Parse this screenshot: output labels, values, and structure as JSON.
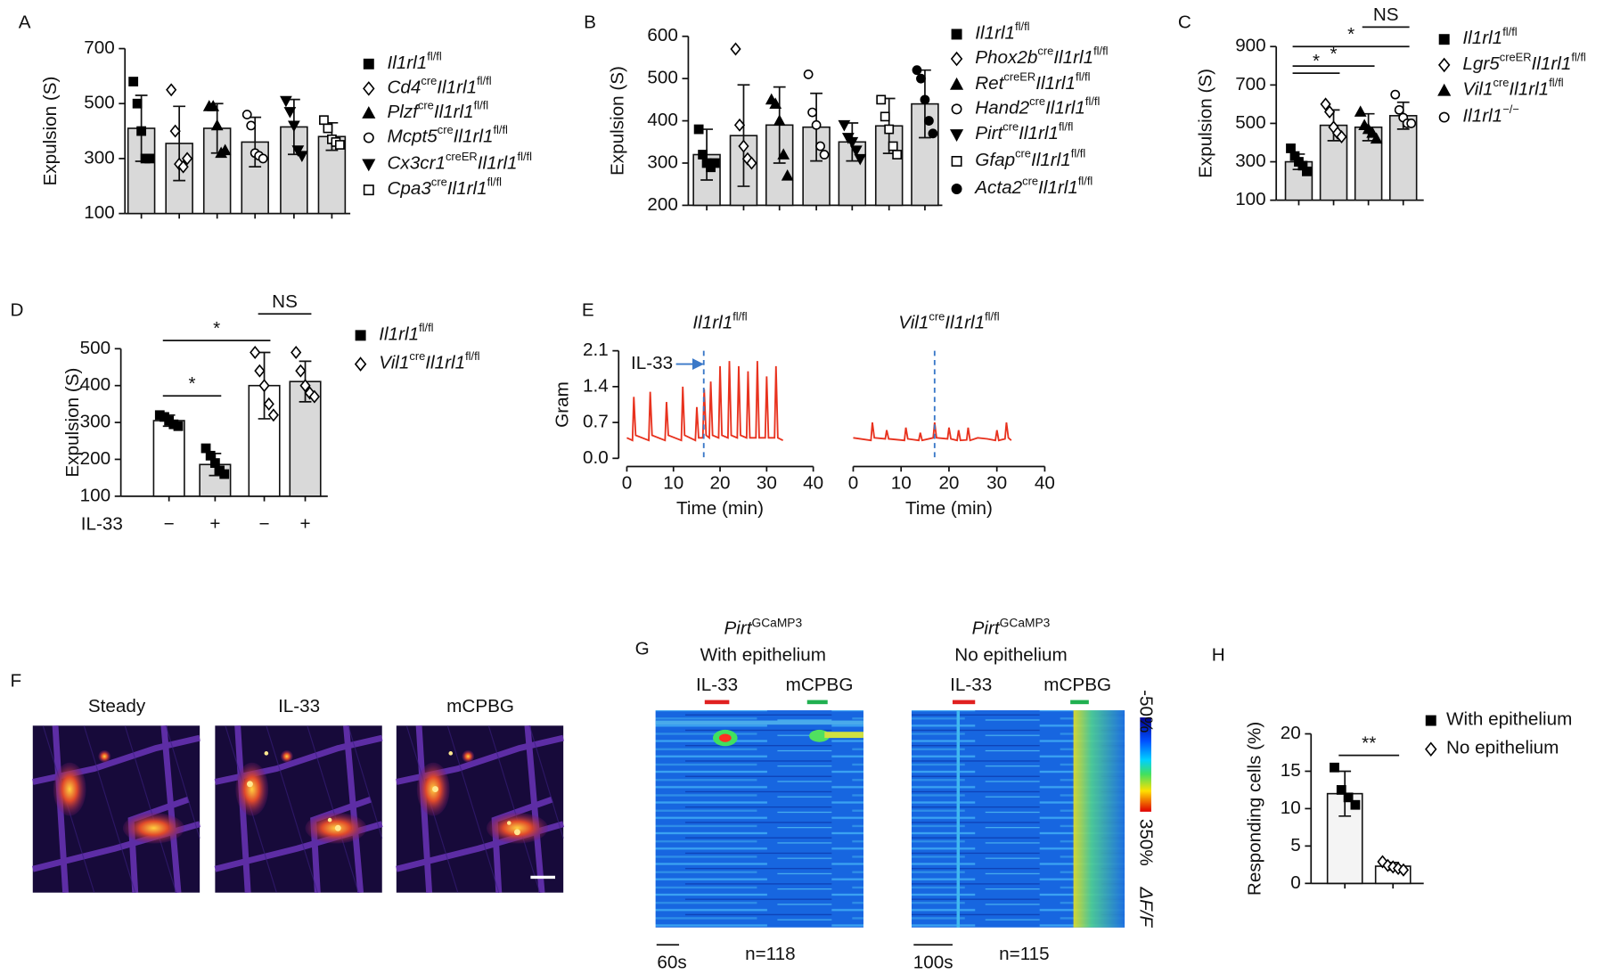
{
  "chart_data": [
    {
      "panel": "A",
      "type": "bar",
      "ylabel": "Expulsion (S)",
      "ylim": [
        100,
        700
      ],
      "yticks": [
        100,
        300,
        500,
        700
      ],
      "bars": [
        {
          "value": 410,
          "error": 120,
          "points": [
            580,
            500,
            400,
            300,
            300
          ],
          "marker": "filled-square",
          "color": "#d9d9d9"
        },
        {
          "value": 355,
          "error": 135,
          "points": [
            550,
            400,
            280,
            270,
            300
          ],
          "marker": "open-diamond",
          "color": "#d9d9d9"
        },
        {
          "value": 410,
          "error": 90,
          "points": [
            490,
            490,
            420,
            320,
            330
          ],
          "marker": "filled-triangle",
          "color": "#d9d9d9"
        },
        {
          "value": 360,
          "error": 90,
          "points": [
            460,
            420,
            320,
            310,
            300
          ],
          "marker": "open-circle",
          "color": "#d9d9d9"
        },
        {
          "value": 415,
          "error": 100,
          "points": [
            510,
            470,
            420,
            330,
            310
          ],
          "marker": "filled-triangle-down",
          "color": "#d9d9d9"
        },
        {
          "value": 380,
          "error": 50,
          "points": [
            440,
            410,
            370,
            360,
            350
          ],
          "marker": "open-square",
          "color": "#d9d9d9"
        }
      ],
      "legend": [
        {
          "name": [
            "Il1rl1",
            "fl/fl"
          ],
          "marker": "filled-square"
        },
        {
          "name": [
            "Cd4",
            "cre",
            "Il1rl1",
            "fl/fl"
          ],
          "marker": "open-diamond"
        },
        {
          "name": [
            "Plzf",
            "cre",
            "Il1rl1",
            "fl/fl"
          ],
          "marker": "filled-triangle"
        },
        {
          "name": [
            "Mcpt5",
            "cre",
            "Il1rl1",
            "fl/fl"
          ],
          "marker": "open-circle"
        },
        {
          "name": [
            "Cx3cr1",
            "creER",
            "Il1rl1",
            "fl/fl"
          ],
          "marker": "filled-triangle-down"
        },
        {
          "name": [
            "Cpa3",
            "cre",
            "Il1rl1",
            "fl/fl"
          ],
          "marker": "open-square"
        }
      ]
    },
    {
      "panel": "B",
      "type": "bar",
      "ylabel": "Expulsion (S)",
      "ylim": [
        200,
        600
      ],
      "yticks": [
        200,
        300,
        400,
        500,
        600
      ],
      "bars": [
        {
          "value": 320,
          "error": 60,
          "points": [
            380,
            320,
            300,
            290,
            300
          ],
          "marker": "filled-square",
          "color": "#d9d9d9"
        },
        {
          "value": 365,
          "error": 120,
          "points": [
            570,
            390,
            340,
            310,
            300
          ],
          "marker": "open-diamond",
          "color": "#d9d9d9"
        },
        {
          "value": 390,
          "error": 90,
          "points": [
            450,
            440,
            400,
            320,
            270
          ],
          "marker": "filled-triangle",
          "color": "#d9d9d9"
        },
        {
          "value": 385,
          "error": 80,
          "points": [
            510,
            420,
            390,
            340,
            320
          ],
          "marker": "open-circle",
          "color": "#d9d9d9"
        },
        {
          "value": 350,
          "error": 45,
          "points": [
            390,
            360,
            350,
            330,
            310
          ],
          "marker": "filled-triangle-down",
          "color": "#d9d9d9"
        },
        {
          "value": 388,
          "error": 65,
          "points": [
            450,
            410,
            380,
            340,
            320
          ],
          "marker": "open-square",
          "color": "#d9d9d9"
        },
        {
          "value": 440,
          "error": 80,
          "points": [
            520,
            500,
            450,
            400,
            370
          ],
          "marker": "filled-circle",
          "color": "#d9d9d9"
        }
      ],
      "legend": [
        {
          "name": [
            "Il1rl1",
            "fl/fl"
          ],
          "marker": "filled-square"
        },
        {
          "name": [
            "Phox2b",
            "cre",
            "Il1rl1",
            "fl/fl"
          ],
          "marker": "open-diamond"
        },
        {
          "name": [
            "Ret",
            "creER",
            "Il1rl1",
            "fl/fl"
          ],
          "marker": "filled-triangle"
        },
        {
          "name": [
            "Hand2",
            "cre",
            "Il1rl1",
            "fl/fl"
          ],
          "marker": "open-circle"
        },
        {
          "name": [
            "Pirt",
            "cre",
            "Il1rl1",
            "fl/fl"
          ],
          "marker": "filled-triangle-down"
        },
        {
          "name": [
            "Gfap",
            "cre",
            "Il1rl1",
            "fl/fl"
          ],
          "marker": "open-square"
        },
        {
          "name": [
            "Acta2",
            "cre",
            "Il1rl1",
            "fl/fl"
          ],
          "marker": "filled-circle"
        }
      ]
    },
    {
      "panel": "C",
      "type": "bar",
      "ylabel": "Expulsion (S)",
      "ylim": [
        100,
        900
      ],
      "yticks": [
        100,
        300,
        500,
        700,
        900
      ],
      "bars": [
        {
          "value": 300,
          "error": 40,
          "points": [
            370,
            330,
            300,
            280,
            250
          ],
          "marker": "filled-square",
          "color": "#d9d9d9"
        },
        {
          "value": 490,
          "error": 80,
          "points": [
            600,
            560,
            480,
            450,
            430
          ],
          "marker": "open-diamond",
          "color": "#d9d9d9"
        },
        {
          "value": 480,
          "error": 70,
          "points": [
            560,
            490,
            470,
            450,
            420
          ],
          "marker": "filled-triangle",
          "color": "#d9d9d9"
        },
        {
          "value": 540,
          "error": 70,
          "points": [
            650,
            570,
            530,
            500,
            500
          ],
          "marker": "open-circle",
          "color": "#d9d9d9"
        }
      ],
      "legend": [
        {
          "name": [
            "Il1rl1",
            "fl/fl"
          ],
          "marker": "filled-square"
        },
        {
          "name": [
            "Lgr5",
            "creER",
            "Il1rl1",
            "fl/fl"
          ],
          "marker": "open-diamond"
        },
        {
          "name": [
            "Vil1",
            "cre",
            "Il1rl1",
            "fl/fl"
          ],
          "marker": "filled-triangle"
        },
        {
          "name": [
            "Il1rl1",
            "−/−"
          ],
          "marker": "open-circle"
        }
      ],
      "significance": [
        {
          "from": 0,
          "to": 1,
          "label": "*"
        },
        {
          "from": 0,
          "to": 2,
          "label": "*"
        },
        {
          "from": 0,
          "to": 3,
          "label": "*"
        },
        {
          "from": 2,
          "to": 3,
          "label": "NS"
        }
      ]
    },
    {
      "panel": "D",
      "type": "bar",
      "ylabel": "Expulsion (S)",
      "ylim": [
        100,
        500
      ],
      "yticks": [
        100,
        200,
        300,
        400,
        500
      ],
      "xlabel": "IL-33",
      "categories": [
        "−",
        "+",
        "−",
        "+"
      ],
      "bars": [
        {
          "value": 305,
          "error": 15,
          "points": [
            320,
            315,
            305,
            295,
            290
          ],
          "marker": "filled-square",
          "color": "#ffffff"
        },
        {
          "value": 186,
          "error": 30,
          "points": [
            230,
            210,
            190,
            170,
            160
          ],
          "marker": "filled-square",
          "color": "#d9d9d9"
        },
        {
          "value": 400,
          "error": 90,
          "points": [
            490,
            440,
            400,
            350,
            320
          ],
          "marker": "open-diamond",
          "color": "#ffffff"
        },
        {
          "value": 411,
          "error": 55,
          "points": [
            490,
            440,
            400,
            380,
            370
          ],
          "marker": "open-diamond",
          "color": "#d9d9d9"
        }
      ],
      "legend": [
        {
          "name": [
            "Il1rl1",
            "fl/fl"
          ],
          "marker": "filled-square"
        },
        {
          "name": [
            "Vil1",
            "cre",
            "Il1rl1",
            "fl/fl"
          ],
          "marker": "open-diamond"
        }
      ],
      "significance": [
        {
          "from": 0,
          "to": 1,
          "label": "*"
        },
        {
          "from": 0,
          "to": 2,
          "label": "*"
        },
        {
          "from": 2,
          "to": 3,
          "label": "NS"
        }
      ]
    },
    {
      "panel": "E",
      "type": "line",
      "ylabel": "Gram",
      "xlabel": "Time (min)",
      "annotation": "IL-33",
      "xlim": [
        0,
        40
      ],
      "xticks": [
        0,
        10,
        20,
        30,
        40
      ],
      "ylim": [
        0,
        2.1
      ],
      "yticks": [
        {
          "value": 0,
          "label": "0.0"
        },
        0.7,
        1.4,
        2.1
      ],
      "series": [
        {
          "name": [
            "Il1rl1",
            "fl/fl"
          ],
          "color": "#e8321e",
          "event": 16.5,
          "x": [
            0,
            1.2,
            1.5,
            1.9,
            4.7,
            5,
            5.4,
            8.2,
            8.5,
            8.9,
            11.7,
            12,
            12.4,
            14.7,
            15,
            15.4,
            16.3,
            16.6,
            17,
            17.7,
            18,
            18.4,
            19.7,
            20,
            20.4,
            21.7,
            22,
            22.4,
            23.7,
            24,
            24.4,
            25.7,
            26,
            26.4,
            27.7,
            28,
            28.4,
            29.7,
            30,
            30.4,
            31.7,
            32,
            32.4,
            33.5
          ],
          "values": [
            0.4,
            0.35,
            1.2,
            0.45,
            0.35,
            1.3,
            0.45,
            0.35,
            1.1,
            0.45,
            0.35,
            1.4,
            0.45,
            0.35,
            1.0,
            0.4,
            0.4,
            1.35,
            0.45,
            0.4,
            1.5,
            0.45,
            0.4,
            1.8,
            0.45,
            0.4,
            1.9,
            0.45,
            0.4,
            1.8,
            0.45,
            0.4,
            1.7,
            0.4,
            0.4,
            1.9,
            0.4,
            0.4,
            1.6,
            0.4,
            0.4,
            1.8,
            0.4,
            0.35
          ]
        },
        {
          "name": [
            "Vil1",
            "cre",
            "Il1rl1",
            "fl/fl"
          ],
          "color": "#e8321e",
          "event": 17,
          "x": [
            0,
            3.7,
            4,
            4.4,
            6.7,
            7,
            7.4,
            10.7,
            11,
            11.4,
            13.7,
            14,
            14.4,
            16.7,
            17,
            17.4,
            19.7,
            20,
            20.4,
            21.7,
            22,
            22.4,
            23.7,
            24,
            24.4,
            26,
            28,
            29.7,
            30,
            30.4,
            31.7,
            32,
            32.4,
            33
          ],
          "values": [
            0.4,
            0.35,
            0.7,
            0.4,
            0.38,
            0.55,
            0.38,
            0.35,
            0.6,
            0.38,
            0.35,
            0.5,
            0.35,
            0.4,
            0.7,
            0.4,
            0.38,
            0.6,
            0.38,
            0.35,
            0.55,
            0.35,
            0.36,
            0.6,
            0.35,
            0.4,
            0.38,
            0.35,
            0.55,
            0.35,
            0.38,
            0.7,
            0.4,
            0.35
          ]
        }
      ]
    },
    {
      "panel": "F",
      "type": "image",
      "labels": [
        "Steady",
        "IL-33",
        "mCPBG"
      ]
    },
    {
      "panel": "G",
      "type": "heatmap",
      "panels": [
        {
          "title": [
            "Pirt",
            "GCaMP3"
          ],
          "subtitle": "With epithelium",
          "stimuli": [
            "IL-33",
            "mCPBG"
          ],
          "scale": "60s",
          "n": "n=118"
        },
        {
          "title": [
            "Pirt",
            "GCaMP3"
          ],
          "subtitle": "No epithelium",
          "stimuli": [
            "IL-33",
            "mCPBG"
          ],
          "scale": "100s",
          "n": "n=115"
        }
      ],
      "colorbar": [
        "-50%",
        "350%",
        "ΔF/F"
      ]
    },
    {
      "panel": "H",
      "type": "bar",
      "ylabel": "Responding cells (%)",
      "ylim": [
        0,
        20
      ],
      "yticks": [
        0,
        5,
        10,
        15,
        20
      ],
      "bars": [
        {
          "value": 12,
          "error": 3,
          "points": [
            15.5,
            12.5,
            11.5,
            10.5
          ],
          "marker": "filled-square",
          "color": "#f4f4f4"
        },
        {
          "value": 2.3,
          "error": 0.5,
          "points": [
            2.9,
            2.4,
            2.2,
            2.0,
            1.8
          ],
          "marker": "open-diamond",
          "color": "#ffffff"
        }
      ],
      "legend": [
        {
          "name": [
            "With epithelium"
          ],
          "marker": "filled-square"
        },
        {
          "name": [
            "No epithelium"
          ],
          "marker": "open-diamond"
        }
      ],
      "significance": [
        {
          "from": 0,
          "to": 1,
          "label": "**"
        }
      ]
    }
  ]
}
